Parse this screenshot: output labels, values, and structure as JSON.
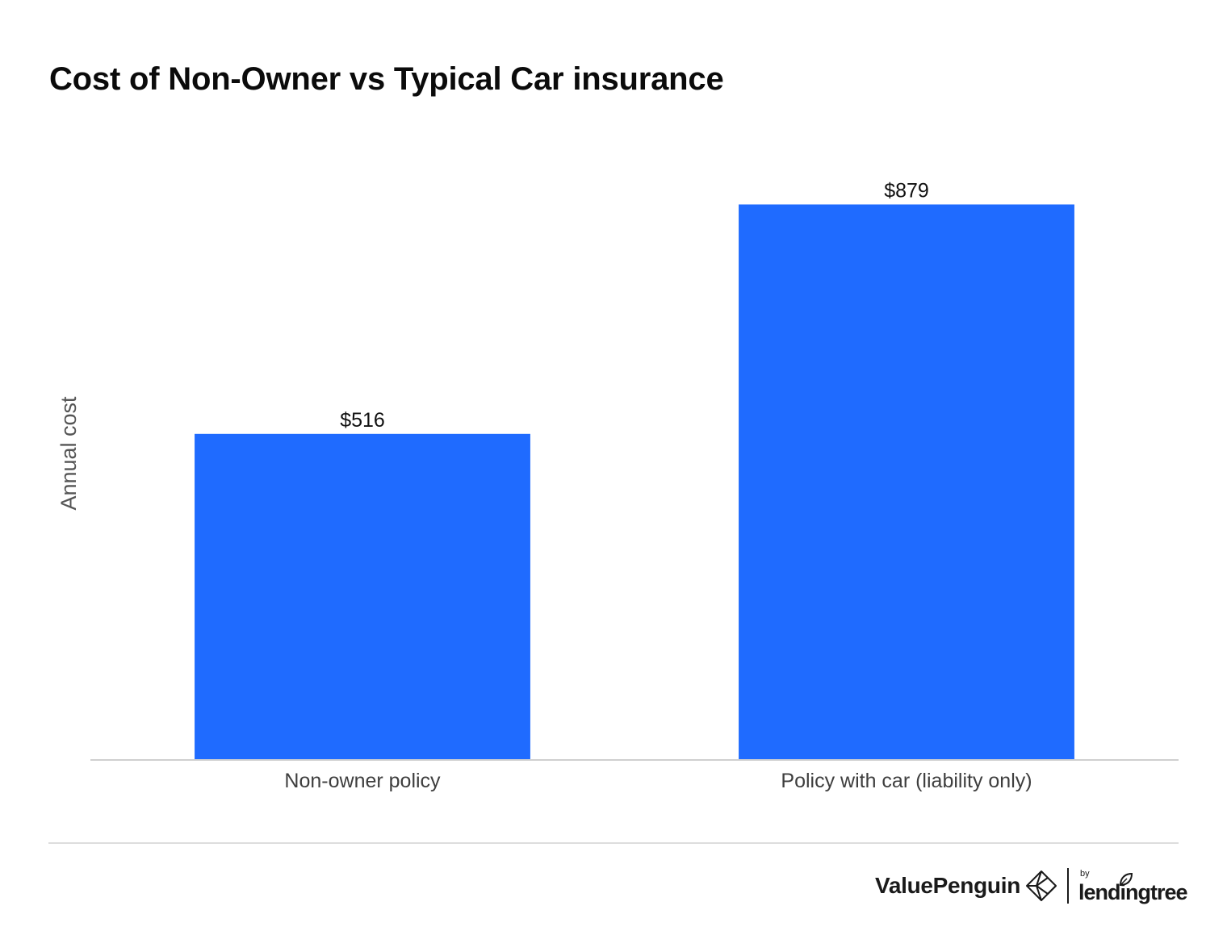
{
  "chart_data": {
    "type": "bar",
    "title": "Cost of Non-Owner vs Typical Car insurance",
    "ylabel": "Annual cost",
    "xlabel": "",
    "categories": [
      "Non-owner policy",
      "Policy with car (liability only)"
    ],
    "values": [
      516,
      879
    ],
    "value_labels": [
      "$516",
      "$879"
    ],
    "ylim": [
      0,
      960
    ],
    "grid": false,
    "legend": "none",
    "bar_color": "#1f6bff"
  },
  "brand": {
    "name": "ValuePenguin",
    "by": "by",
    "partner": "lendingtree",
    "logo_icon": "valuepenguin-diamond-icon",
    "leaf_icon": "lendingtree-leaf-icon"
  }
}
